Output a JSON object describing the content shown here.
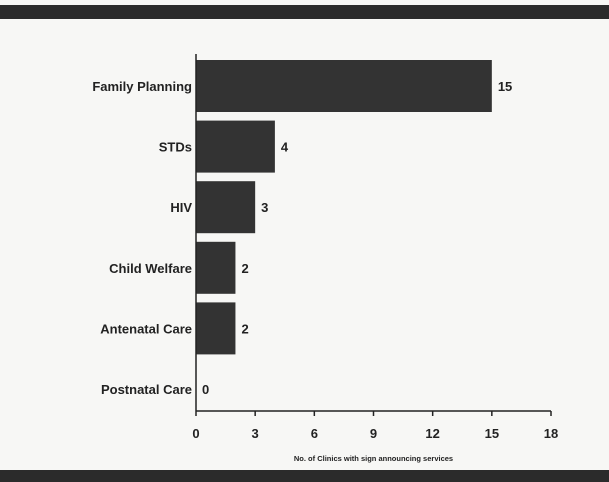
{
  "chart_data": {
    "type": "bar",
    "orientation": "horizontal",
    "categories": [
      "Family Planning",
      "STDs",
      "HIV",
      "Child Welfare",
      "Antenatal Care",
      "Postnatal Care"
    ],
    "values": [
      15,
      4,
      3,
      2,
      2,
      0
    ],
    "data_labels": [
      "15",
      "4",
      "3",
      "2",
      "2",
      "0"
    ],
    "xticks": [
      "0",
      "3",
      "6",
      "9",
      "12",
      "15",
      "18"
    ],
    "xlim": [
      0,
      18
    ],
    "xlabel": "No. of Clinics with sign announcing services",
    "ylabel": "",
    "title": "",
    "grid": false,
    "legend": "none",
    "bar_color": "#333333"
  }
}
